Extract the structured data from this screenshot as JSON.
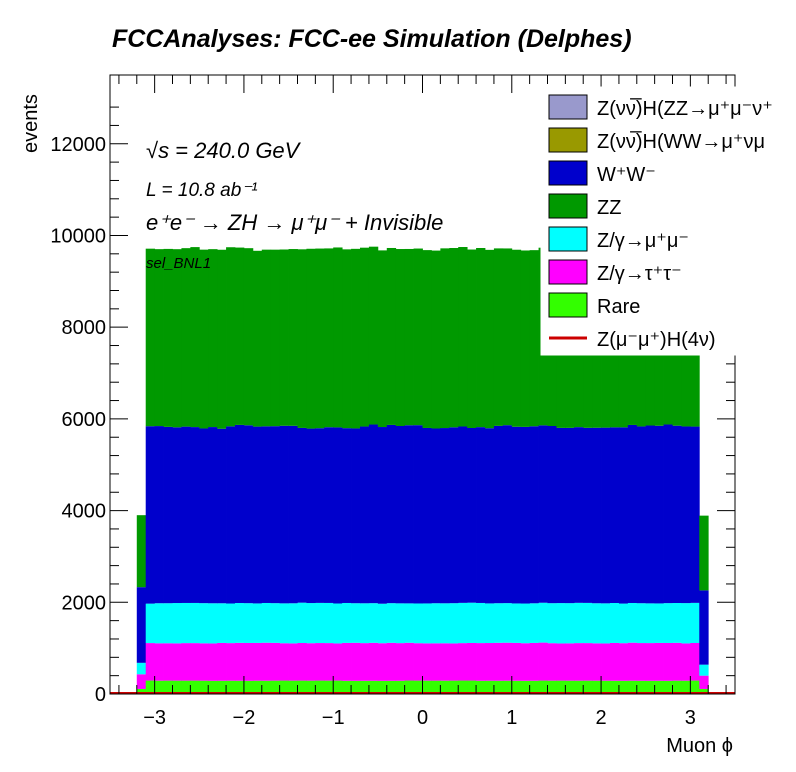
{
  "chart_data": {
    "type": "bar",
    "stacked": true,
    "title": "FCCAnalyses: FCC-ee Simulation (Delphes)",
    "xlabel": "Muon ϕ",
    "ylabel": "events",
    "xlim": [
      -3.5,
      3.5
    ],
    "ylim": [
      0,
      13500
    ],
    "x_ticks": [
      -3,
      -2,
      -1,
      0,
      1,
      2,
      3
    ],
    "y_ticks": [
      0,
      2000,
      4000,
      6000,
      8000,
      10000,
      12000
    ],
    "x_tick_labels": [
      "−3",
      "−2",
      "−1",
      "0",
      "1",
      "2",
      "3"
    ],
    "y_tick_labels": [
      "0",
      "2000",
      "4000",
      "6000",
      "8000",
      "10000",
      "12000"
    ],
    "bin_range": [
      -3.2,
      3.2
    ],
    "n_bins": 64,
    "edge_bins": {
      "first_rare": 110,
      "first_tautau": 320,
      "first_mumu": 250,
      "first_ww": 1650,
      "first_zz": 1570,
      "last_rare": 110,
      "last_tautau": 290,
      "last_mumu": 240,
      "last_ww": 1620,
      "last_zz": 1630
    },
    "approx_levels": {
      "Rare": 290,
      "Z/γ→ττ": 820,
      "Z/γ→μμ": 870,
      "W+W-": 3850,
      "ZZ": 3880
    },
    "series": [
      {
        "name": "Z(νν̅)H(ZZ→μ⁺μ⁻ν⁺",
        "color": "#9999cc",
        "order": 0
      },
      {
        "name": "Z(νν̅)H(WW→μ⁺νμ",
        "color": "#999900",
        "order": 1
      },
      {
        "name": "W⁺W⁻",
        "color": "#0000cc",
        "order": 2
      },
      {
        "name": "ZZ",
        "color": "#009900",
        "order": 3
      },
      {
        "name": "Z/γ→μ⁺μ⁻",
        "color": "#00ffff",
        "order": 4
      },
      {
        "name": "Z/γ→τ⁺τ⁻",
        "color": "#ff00ff",
        "order": 5
      },
      {
        "name": "Rare",
        "color": "#33ff00",
        "order": 6
      },
      {
        "name": "Z(μ⁻μ⁺)H(4ν)",
        "color": "#cc0000",
        "order": 7,
        "style": "line"
      }
    ],
    "annotations": {
      "sqrt_s": "√s = 240.0 GeV",
      "lumi": "L = 10.8 ab⁻¹",
      "process": "e⁺e⁻ → ZH → μ⁺μ⁻ + Invisible",
      "selection": "sel_BNL1"
    },
    "legend_position": "top-right",
    "grid": false
  }
}
